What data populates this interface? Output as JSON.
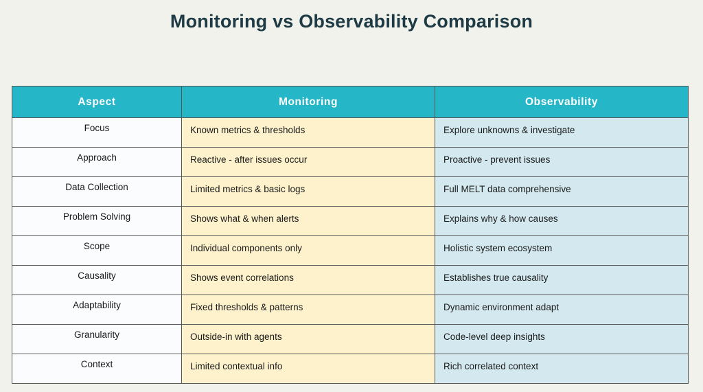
{
  "page": {
    "title": "Monitoring vs Observability Comparison"
  },
  "chart_data": {
    "type": "table",
    "title": "Monitoring vs Observability Comparison",
    "columns": [
      "Aspect",
      "Monitoring",
      "Observability"
    ],
    "rows": [
      [
        "Focus",
        "Known metrics & thresholds",
        "Explore unknowns & investigate"
      ],
      [
        "Approach",
        "Reactive - after issues occur",
        "Proactive - prevent issues"
      ],
      [
        "Data Collection",
        "Limited metrics & basic logs",
        "Full MELT data comprehensive"
      ],
      [
        "Problem Solving",
        "Shows what & when alerts",
        "Explains why & how causes"
      ],
      [
        "Scope",
        "Individual components only",
        "Holistic system ecosystem"
      ],
      [
        "Causality",
        "Shows event correlations",
        "Establishes true causality"
      ],
      [
        "Adaptability",
        "Fixed thresholds & patterns",
        "Dynamic environment adapt"
      ],
      [
        "Granularity",
        "Outside-in with agents",
        "Code-level deep insights"
      ],
      [
        "Context",
        "Limited contextual info",
        "Rich correlated context"
      ]
    ],
    "layout_hints": {
      "header_position": "top",
      "grid": true
    }
  },
  "colors": {
    "page_bg": "#f1f2ec",
    "title_text": "#1e3b45",
    "header_bg": "#25b7c7",
    "header_text": "#ffffff",
    "aspect_cell_bg": "#fafcfd",
    "monitoring_cell_bg": "#fdf2cc",
    "observability_cell_bg": "#d3e9ef",
    "cell_text": "#1a1a1a",
    "border": "#565656"
  }
}
